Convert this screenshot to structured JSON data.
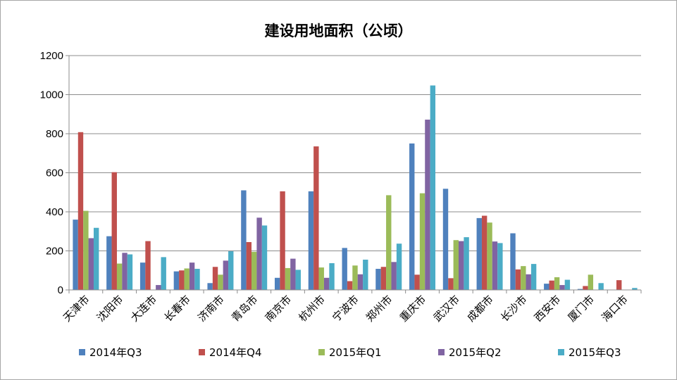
{
  "chart_data": {
    "type": "bar",
    "title": "建设用地面积（公顷）",
    "xlabel": "",
    "ylabel": "",
    "ylim": [
      0,
      1200
    ],
    "yticks": [
      0,
      200,
      400,
      600,
      800,
      1000,
      1200
    ],
    "grid": true,
    "legend_position": "bottom",
    "categories": [
      "天津市",
      "沈阳市",
      "大连市",
      "长春市",
      "济南市",
      "青岛市",
      "南京市",
      "杭州市",
      "宁波市",
      "郑州市",
      "重庆市",
      "武汉市",
      "成都市",
      "长沙市",
      "西安市",
      "厦门市",
      "海口市"
    ],
    "series": [
      {
        "name": "2014年Q3",
        "color": "#4f81bd",
        "values": [
          360,
          275,
          140,
          95,
          35,
          510,
          62,
          505,
          215,
          108,
          750,
          518,
          368,
          290,
          32,
          5,
          0
        ]
      },
      {
        "name": "2014年Q4",
        "color": "#c0504d",
        "values": [
          808,
          603,
          250,
          100,
          118,
          245,
          505,
          735,
          45,
          118,
          78,
          60,
          380,
          105,
          48,
          20,
          50
        ]
      },
      {
        "name": "2015年Q1",
        "color": "#9bbb59",
        "values": [
          405,
          135,
          0,
          110,
          78,
          195,
          112,
          115,
          125,
          485,
          495,
          255,
          345,
          122,
          65,
          78,
          0
        ]
      },
      {
        "name": "2015年Q2",
        "color": "#8064a2",
        "values": [
          265,
          190,
          25,
          140,
          150,
          370,
          160,
          62,
          80,
          143,
          872,
          250,
          248,
          80,
          25,
          0,
          0
        ]
      },
      {
        "name": "2015年Q3",
        "color": "#4bacc6",
        "values": [
          318,
          182,
          168,
          108,
          198,
          330,
          103,
          137,
          155,
          237,
          1047,
          270,
          240,
          133,
          52,
          35,
          10
        ]
      }
    ]
  }
}
